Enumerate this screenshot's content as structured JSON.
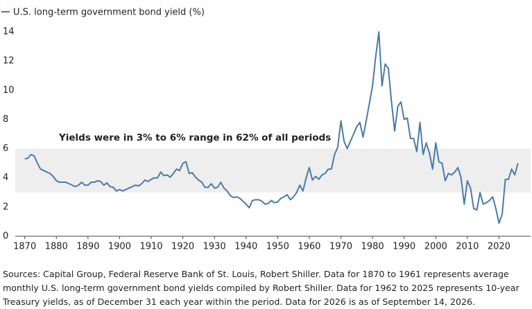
{
  "chart_data": {
    "type": "line",
    "legend_label": "U.S. long-term government bond yield (%)",
    "annotation": "Yields were in 3% to 6% range in 62% of all periods",
    "source": "Sources: Capital Group, Federal Reserve Bank of St. Louis, Robert Shiller. Data for 1870 to 1961 represents average monthly U.S. long-term government bond yields compiled by Robert Shiller. Data for 1962 to 2025 represents 10-year Treasury yields, as of December 31 each year within the period. Data for 2026 is as of September 14, 2026.",
    "x": [
      1870,
      1871,
      1872,
      1873,
      1874,
      1875,
      1876,
      1877,
      1878,
      1879,
      1880,
      1881,
      1882,
      1883,
      1884,
      1885,
      1886,
      1887,
      1888,
      1889,
      1890,
      1891,
      1892,
      1893,
      1894,
      1895,
      1896,
      1897,
      1898,
      1899,
      1900,
      1901,
      1902,
      1903,
      1904,
      1905,
      1906,
      1907,
      1908,
      1909,
      1910,
      1911,
      1912,
      1913,
      1914,
      1915,
      1916,
      1917,
      1918,
      1919,
      1920,
      1921,
      1922,
      1923,
      1924,
      1925,
      1926,
      1927,
      1928,
      1929,
      1930,
      1931,
      1932,
      1933,
      1934,
      1935,
      1936,
      1937,
      1938,
      1939,
      1940,
      1941,
      1942,
      1943,
      1944,
      1945,
      1946,
      1947,
      1948,
      1949,
      1950,
      1951,
      1952,
      1953,
      1954,
      1955,
      1956,
      1957,
      1958,
      1959,
      1960,
      1961,
      1962,
      1963,
      1964,
      1965,
      1966,
      1967,
      1968,
      1969,
      1970,
      1971,
      1972,
      1973,
      1974,
      1975,
      1976,
      1977,
      1978,
      1979,
      1980,
      1981,
      1982,
      1983,
      1984,
      1985,
      1986,
      1987,
      1988,
      1989,
      1990,
      1991,
      1992,
      1993,
      1994,
      1995,
      1996,
      1997,
      1998,
      1999,
      2000,
      2001,
      2002,
      2003,
      2004,
      2005,
      2006,
      2007,
      2008,
      2009,
      2010,
      2011,
      2012,
      2013,
      2014,
      2015,
      2016,
      2017,
      2018,
      2019,
      2020,
      2021,
      2022,
      2023,
      2024,
      2025,
      2026
    ],
    "series": [
      {
        "name": "U.S. long-term government bond yield (%)",
        "color": "#4a7aa8",
        "values": [
          5.3,
          5.35,
          5.6,
          5.5,
          5.0,
          4.6,
          4.5,
          4.4,
          4.3,
          4.1,
          3.8,
          3.7,
          3.7,
          3.7,
          3.6,
          3.5,
          3.4,
          3.5,
          3.7,
          3.5,
          3.5,
          3.7,
          3.7,
          3.8,
          3.75,
          3.5,
          3.65,
          3.4,
          3.35,
          3.1,
          3.2,
          3.1,
          3.2,
          3.3,
          3.4,
          3.5,
          3.45,
          3.6,
          3.85,
          3.75,
          3.9,
          4.0,
          4.0,
          4.4,
          4.15,
          4.2,
          4.05,
          4.3,
          4.6,
          4.5,
          5.0,
          5.1,
          4.3,
          4.35,
          4.05,
          3.85,
          3.7,
          3.35,
          3.35,
          3.6,
          3.3,
          3.35,
          3.7,
          3.3,
          3.1,
          2.8,
          2.65,
          2.7,
          2.6,
          2.4,
          2.2,
          1.95,
          2.45,
          2.5,
          2.5,
          2.4,
          2.2,
          2.25,
          2.45,
          2.3,
          2.35,
          2.6,
          2.7,
          2.85,
          2.5,
          2.7,
          3.0,
          3.5,
          3.1,
          4.0,
          4.7,
          3.85,
          4.1,
          3.9,
          4.2,
          4.3,
          4.6,
          4.6,
          5.6,
          6.1,
          7.9,
          6.5,
          6.0,
          6.5,
          7.0,
          7.5,
          7.8,
          6.8,
          7.9,
          9.1,
          10.3,
          12.3,
          14.0,
          10.3,
          11.8,
          11.5,
          9.2,
          7.2,
          8.9,
          9.2,
          8.0,
          8.1,
          6.7,
          6.7,
          5.8,
          7.8,
          5.6,
          6.4,
          5.7,
          4.6,
          6.4,
          5.1,
          5.0,
          3.8,
          4.3,
          4.2,
          4.4,
          4.7,
          4.0,
          2.2,
          3.8,
          3.3,
          1.9,
          1.8,
          3.0,
          2.2,
          2.3,
          2.45,
          2.7,
          1.9,
          0.9,
          1.5,
          3.9,
          3.9,
          4.6,
          4.2,
          5.0
        ]
      }
    ],
    "shaded_range": [
      3,
      6
    ],
    "shaded_color": "#eeeeee",
    "xlim": [
      1867,
      2030
    ],
    "ylim": [
      0,
      14
    ],
    "xticks": [
      1870,
      1880,
      1890,
      1900,
      1910,
      1920,
      1930,
      1940,
      1950,
      1960,
      1970,
      1980,
      1990,
      2000,
      2010,
      2020
    ],
    "yticks": [
      0,
      2,
      4,
      6,
      8,
      10,
      12,
      14
    ],
    "grid": false
  }
}
